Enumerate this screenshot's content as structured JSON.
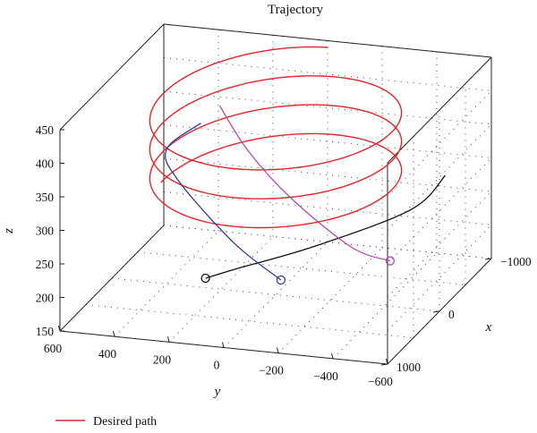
{
  "chart_data": {
    "type": "line",
    "title": "Trajectory",
    "xlabel": "x",
    "ylabel": "y",
    "zlabel": "z",
    "x_ticks": [
      "1000",
      "0",
      "−1000"
    ],
    "y_ticks": [
      "600",
      "400",
      "200",
      "0",
      "−200",
      "−400",
      "−600"
    ],
    "z_ticks": [
      "450",
      "400",
      "350",
      "300",
      "250",
      "200",
      "150"
    ],
    "xlim": [
      -1000,
      1000
    ],
    "ylim": [
      -600,
      600
    ],
    "zlim": [
      150,
      450
    ],
    "grid": true,
    "legend_position": "bottom-left",
    "series": [
      {
        "name": "Desired path",
        "color": "#e8242a",
        "shape": "helix",
        "center_x": 0,
        "center_y": 0,
        "radius_x": 1000,
        "radius_y": 420,
        "z_start": 300,
        "z_end": 440,
        "start_angle_deg": 90,
        "turns": 3.25
      },
      {
        "color": "#111111",
        "start_marker": "circle",
        "points": [
          [
            300,
            200,
            190
          ],
          [
            150,
            120,
            195
          ],
          [
            -200,
            -100,
            210
          ],
          [
            -600,
            -380,
            245
          ],
          [
            -850,
            -460,
            280
          ]
        ]
      },
      {
        "color": "#2b3d9b",
        "start_marker": "circle",
        "points": [
          [
            950,
            -200,
            255
          ],
          [
            800,
            0,
            290
          ],
          [
            400,
            280,
            340
          ],
          [
            0,
            400,
            350
          ],
          [
            -400,
            350,
            360
          ]
        ]
      },
      {
        "color": "#b24aae",
        "start_marker": "circle",
        "points": [
          [
            950,
            -600,
            300
          ],
          [
            900,
            -450,
            310
          ],
          [
            500,
            -150,
            340
          ],
          [
            0,
            100,
            360
          ],
          [
            -500,
            300,
            380
          ]
        ]
      }
    ]
  },
  "legend": {
    "entries": [
      {
        "label": "Desired path",
        "color": "#e8242a"
      }
    ]
  }
}
